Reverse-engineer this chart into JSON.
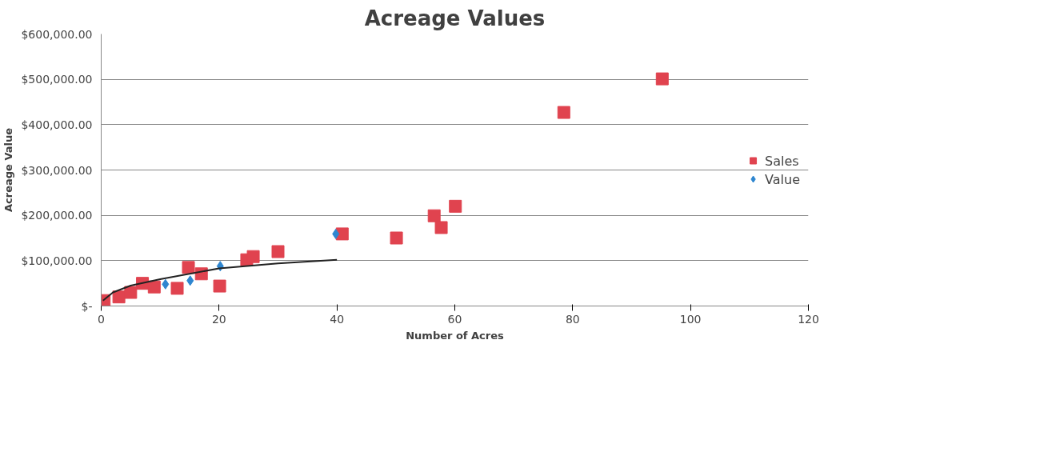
{
  "chart_data": {
    "type": "scatter",
    "title": "Acreage Values",
    "xlabel": "Number of Acres",
    "ylabel": "Acreage Value",
    "xlim": [
      0,
      120
    ],
    "xticks": [
      0,
      20,
      40,
      60,
      80,
      100,
      120
    ],
    "ylim": [
      0,
      600000
    ],
    "yticks": [
      {
        "value": 0,
        "label": "$-"
      },
      {
        "value": 100000,
        "label": "$100,000.00"
      },
      {
        "value": 200000,
        "label": "$200,000.00"
      },
      {
        "value": 300000,
        "label": "$300,000.00"
      },
      {
        "value": 400000,
        "label": "$400,000.00"
      },
      {
        "value": 500000,
        "label": "$500,000.00"
      },
      {
        "value": 600000,
        "label": "$600,000.00"
      }
    ],
    "grid": "y",
    "legend": "right",
    "series": [
      {
        "name": "Value",
        "color": "#2e86d0",
        "marker": "diamond",
        "x": [
          10.9,
          15.1,
          20.2,
          39.8
        ],
        "values": [
          48000,
          56000,
          88000,
          159000
        ]
      },
      {
        "name": "Sales",
        "color": "#e0434f",
        "marker": "square",
        "x": [
          0.5,
          3,
          5,
          7,
          9,
          12.9,
          14.8,
          17,
          20.1,
          24.7,
          25.8,
          30,
          40.9,
          50.1,
          56.5,
          57.7,
          60.1,
          78.5,
          95.2
        ],
        "values": [
          12000,
          20000,
          30000,
          50000,
          42000,
          39000,
          85000,
          71000,
          44000,
          102000,
          109000,
          120000,
          159000,
          150000,
          199000,
          173000,
          220000,
          427000,
          501000
        ]
      },
      {
        "type": "line",
        "color": "#222222",
        "x": [
          0.3,
          2,
          5,
          10,
          20,
          30,
          40
        ],
        "values": [
          12000,
          30000,
          45000,
          59000,
          83000,
          94000,
          102000
        ]
      }
    ]
  }
}
